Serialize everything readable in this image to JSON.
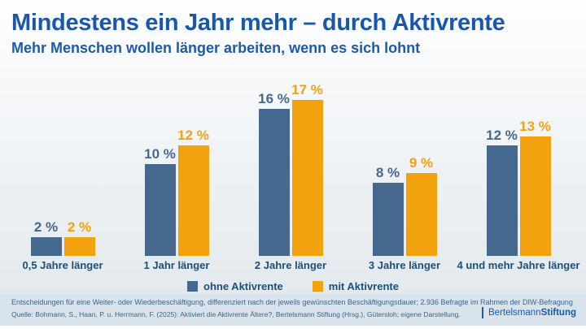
{
  "header": {
    "title": "Mindestens ein Jahr mehr – durch Aktivrente",
    "subtitle": "Mehr Menschen wollen länger arbeiten, wenn es sich lohnt"
  },
  "chart_data": {
    "type": "bar",
    "title": "Mindestens ein Jahr mehr – durch Aktivrente",
    "subtitle": "Mehr Menschen wollen länger arbeiten, wenn es sich lohnt",
    "categories": [
      "0,5 Jahre länger",
      "1 Jahr länger",
      "2 Jahre länger",
      "3 Jahre länger",
      "4 und mehr Jahre länger"
    ],
    "series": [
      {
        "name": "ohne Aktivrente",
        "color": "#45688e",
        "values": [
          2,
          10,
          16,
          8,
          12
        ]
      },
      {
        "name": "mit Aktivrente",
        "color": "#f2a20d",
        "values": [
          2,
          12,
          17,
          9,
          13
        ]
      }
    ],
    "value_suffix": " %",
    "xlabel": "",
    "ylabel": "",
    "ylim": [
      0,
      19
    ],
    "grid": false,
    "legend_position": "bottom",
    "value_labels_shown": true
  },
  "footer": {
    "note": "Entscheidungen für eine Weiter- oder Wiederbeschäftigung, differenziert nach der jeweils gewünschten Beschäftigungsdauer; 2.936 Befragte im Rahmen der DIW-Befragung",
    "source": "Quelle: Bohmann, S., Haan, P. u. Herrmann, F. (2025): Aktiviert die Aktivrente Ältere?, Bertelsmann Stiftung (Hrsg.), Gütersloh; eigene Darstellung."
  },
  "logo": {
    "name_regular": "Bertelsmann",
    "name_bold": "Stiftung"
  },
  "colors": {
    "title_blue": "#1b57a8",
    "bar_blue": "#45688e",
    "bar_orange": "#f2a20d",
    "category_navy": "#1e4f78",
    "footer_bg": "#d9e3ec",
    "footer_text": "#3d6486",
    "logo_blue": "#1b5aa5"
  }
}
